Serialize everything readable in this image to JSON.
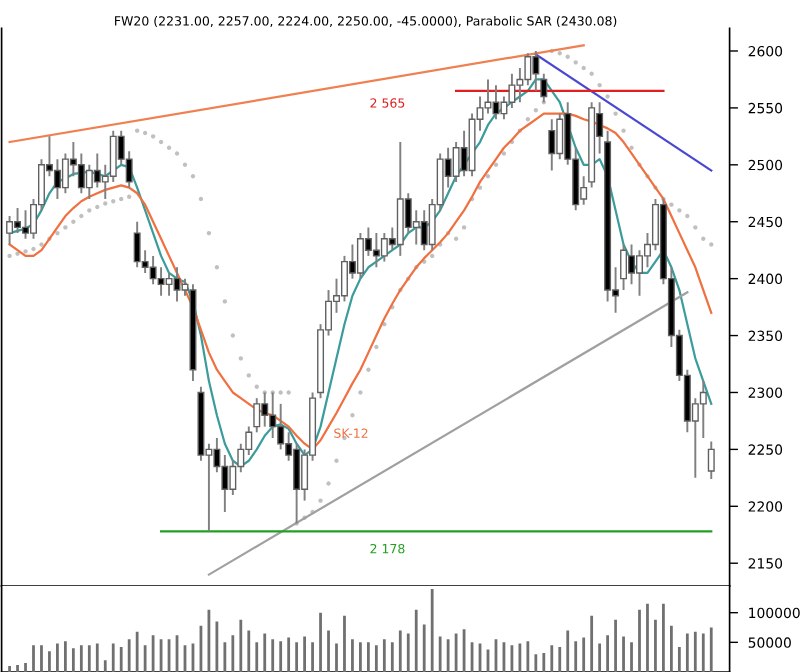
{
  "chart_data": [
    {
      "type": "candlestick",
      "title": "FW20 (2231.00, 2257.00, 2224.00, 2250.00, -45.0000), Parabolic SAR (2430.08)",
      "categories": [
        null,
        null,
        null,
        null,
        null,
        null,
        null,
        null,
        null,
        null,
        null,
        null,
        null,
        null,
        null,
        null,
        null,
        null,
        null,
        null,
        null,
        null,
        null,
        null,
        null,
        null,
        null,
        null,
        null,
        null,
        null,
        null,
        null,
        null,
        null,
        null,
        null,
        null,
        null,
        null,
        null,
        null,
        null,
        null,
        null,
        null,
        null,
        null,
        null,
        null,
        null,
        null,
        null,
        null,
        null,
        null,
        null,
        null,
        null,
        null,
        null,
        null,
        null,
        null,
        null,
        null,
        null,
        null,
        null,
        null,
        null,
        null,
        null,
        null,
        null,
        null,
        null,
        null,
        null,
        null,
        null,
        null,
        null,
        null,
        null,
        null,
        null,
        null,
        null
      ],
      "ohlc": [
        [
          2440,
          2455,
          2430,
          2450
        ],
        [
          2450,
          2462,
          2440,
          2445
        ],
        [
          2445,
          2460,
          2435,
          2440
        ],
        [
          2440,
          2470,
          2435,
          2465
        ],
        [
          2465,
          2505,
          2460,
          2500
        ],
        [
          2500,
          2525,
          2490,
          2495
        ],
        [
          2495,
          2505,
          2470,
          2480
        ],
        [
          2480,
          2510,
          2475,
          2505
        ],
        [
          2505,
          2520,
          2490,
          2500
        ],
        [
          2500,
          2510,
          2475,
          2480
        ],
        [
          2480,
          2500,
          2470,
          2495
        ],
        [
          2495,
          2510,
          2480,
          2485
        ],
        [
          2485,
          2500,
          2470,
          2490
        ],
        [
          2490,
          2530,
          2485,
          2525
        ],
        [
          2525,
          2530,
          2500,
          2505
        ],
        [
          2505,
          2512,
          2480,
          2485
        ],
        [
          2440,
          2450,
          2410,
          2415
        ],
        [
          2415,
          2425,
          2405,
          2410
        ],
        [
          2410,
          2420,
          2395,
          2400
        ],
        [
          2400,
          2410,
          2385,
          2395
        ],
        [
          2395,
          2405,
          2385,
          2400
        ],
        [
          2400,
          2410,
          2380,
          2390
        ],
        [
          2390,
          2400,
          2385,
          2395
        ],
        [
          2390,
          2395,
          2310,
          2320
        ],
        [
          2300,
          2305,
          2240,
          2245
        ],
        [
          2245,
          2255,
          2178,
          2250
        ],
        [
          2250,
          2260,
          2230,
          2235
        ],
        [
          2235,
          2245,
          2195,
          2215
        ],
        [
          2215,
          2240,
          2210,
          2235
        ],
        [
          2235,
          2255,
          2230,
          2250
        ],
        [
          2250,
          2270,
          2245,
          2265
        ],
        [
          2270,
          2295,
          2265,
          2290
        ],
        [
          2290,
          2300,
          2270,
          2280
        ],
        [
          2280,
          2300,
          2260,
          2270
        ],
        [
          2270,
          2290,
          2250,
          2255
        ],
        [
          2255,
          2265,
          2240,
          2245
        ],
        [
          2250,
          2255,
          2185,
          2215
        ],
        [
          2215,
          2250,
          2205,
          2245
        ],
        [
          2245,
          2300,
          2240,
          2295
        ],
        [
          2300,
          2360,
          2295,
          2355
        ],
        [
          2355,
          2390,
          2350,
          2380
        ],
        [
          2380,
          2400,
          2370,
          2385
        ],
        [
          2385,
          2420,
          2380,
          2415
        ],
        [
          2415,
          2430,
          2400,
          2405
        ],
        [
          2405,
          2440,
          2400,
          2435
        ],
        [
          2435,
          2445,
          2420,
          2425
        ],
        [
          2425,
          2440,
          2410,
          2420
        ],
        [
          2420,
          2440,
          2415,
          2435
        ],
        [
          2435,
          2445,
          2425,
          2430
        ],
        [
          2430,
          2520,
          2420,
          2470
        ],
        [
          2470,
          2475,
          2440,
          2445
        ],
        [
          2445,
          2460,
          2430,
          2450
        ],
        [
          2450,
          2460,
          2425,
          2430
        ],
        [
          2430,
          2470,
          2425,
          2465
        ],
        [
          2465,
          2510,
          2460,
          2505
        ],
        [
          2505,
          2515,
          2480,
          2490
        ],
        [
          2490,
          2520,
          2485,
          2515
        ],
        [
          2515,
          2530,
          2490,
          2495
        ],
        [
          2495,
          2545,
          2490,
          2540
        ],
        [
          2540,
          2560,
          2530,
          2550
        ],
        [
          2550,
          2575,
          2545,
          2555
        ],
        [
          2555,
          2570,
          2540,
          2545
        ],
        [
          2545,
          2560,
          2540,
          2555
        ],
        [
          2555,
          2580,
          2550,
          2570
        ],
        [
          2570,
          2585,
          2555,
          2575
        ],
        [
          2575,
          2598,
          2570,
          2595
        ],
        [
          2595,
          2600,
          2565,
          2580
        ],
        [
          2575,
          2580,
          2555,
          2560
        ],
        [
          2530,
          2540,
          2495,
          2510
        ],
        [
          2510,
          2545,
          2505,
          2540
        ],
        [
          2545,
          2555,
          2500,
          2505
        ],
        [
          2505,
          2515,
          2460,
          2465
        ],
        [
          2470,
          2490,
          2465,
          2480
        ],
        [
          2485,
          2555,
          2480,
          2550
        ],
        [
          2545,
          2555,
          2510,
          2525
        ],
        [
          2520,
          2530,
          2380,
          2390
        ],
        [
          2390,
          2410,
          2370,
          2385
        ],
        [
          2400,
          2430,
          2390,
          2425
        ],
        [
          2420,
          2430,
          2395,
          2405
        ],
        [
          2405,
          2425,
          2385,
          2420
        ],
        [
          2420,
          2440,
          2410,
          2430
        ],
        [
          2430,
          2470,
          2425,
          2465
        ],
        [
          2465,
          2470,
          2395,
          2400
        ],
        [
          2400,
          2410,
          2340,
          2350
        ],
        [
          2350,
          2355,
          2310,
          2315
        ],
        [
          2315,
          2320,
          2265,
          2275
        ],
        [
          2275,
          2295,
          2225,
          2290
        ],
        [
          2290,
          2310,
          2260,
          2300
        ],
        [
          2231,
          2257,
          2224,
          2250
        ]
      ],
      "series": [
        {
          "type": "line",
          "color": "#3c9c9c",
          "values": [
            2440,
            2442,
            2444,
            2448,
            2460,
            2475,
            2485,
            2488,
            2492,
            2493,
            2494,
            2492,
            2490,
            2495,
            2500,
            2498,
            2480,
            2460,
            2440,
            2420,
            2405,
            2400,
            2397,
            2380,
            2350,
            2310,
            2280,
            2255,
            2240,
            2235,
            2240,
            2250,
            2262,
            2270,
            2272,
            2268,
            2255,
            2245,
            2250,
            2270,
            2300,
            2330,
            2360,
            2385,
            2400,
            2410,
            2415,
            2420,
            2425,
            2430,
            2440,
            2445,
            2445,
            2450,
            2460,
            2475,
            2490,
            2500,
            2510,
            2520,
            2535,
            2545,
            2550,
            2555,
            2560,
            2565,
            2575,
            2575,
            2565,
            2555,
            2535,
            2515,
            2500,
            2500,
            2505,
            2490,
            2460,
            2430,
            2415,
            2405,
            2405,
            2415,
            2425,
            2410,
            2390,
            2360,
            2330,
            2310,
            2290
          ]
        },
        {
          "type": "line",
          "color": "#f07040",
          "values": [
            2430,
            2425,
            2420,
            2420,
            2425,
            2435,
            2445,
            2455,
            2462,
            2468,
            2472,
            2475,
            2478,
            2480,
            2482,
            2480,
            2475,
            2465,
            2450,
            2435,
            2420,
            2405,
            2390,
            2375,
            2355,
            2335,
            2320,
            2310,
            2300,
            2295,
            2290,
            2285,
            2282,
            2280,
            2275,
            2270,
            2262,
            2255,
            2250,
            2258,
            2270,
            2282,
            2295,
            2308,
            2320,
            2335,
            2350,
            2365,
            2378,
            2390,
            2400,
            2410,
            2418,
            2425,
            2432,
            2440,
            2450,
            2460,
            2472,
            2485,
            2495,
            2505,
            2515,
            2522,
            2530,
            2535,
            2540,
            2545,
            2545,
            2545,
            2545,
            2543,
            2540,
            2538,
            2535,
            2532,
            2528,
            2520,
            2510,
            2500,
            2490,
            2480,
            2470,
            2455,
            2440,
            2425,
            2410,
            2390,
            2370
          ]
        },
        {
          "type": "scatter",
          "color": "#c0c0c0",
          "values": [
            2420,
            2422,
            2424,
            2426,
            2430,
            2435,
            2440,
            2445,
            2450,
            2455,
            2460,
            2463,
            2466,
            2468,
            2470,
            2472,
            2530,
            2528,
            2525,
            2520,
            2515,
            2510,
            2500,
            2490,
            2470,
            2440,
            2410,
            2380,
            2350,
            2330,
            2315,
            2305,
            2300,
            2300,
            2300,
            2300,
            2185,
            2190,
            2195,
            2205,
            2220,
            2240,
            2260,
            2280,
            2300,
            2320,
            2340,
            2360,
            2375,
            2390,
            2400,
            2410,
            2415,
            2420,
            2430,
            2440,
            2435,
            2445,
            2470,
            2480,
            2490,
            2500,
            2510,
            2520,
            2530,
            2540,
            2548,
            2555,
            2600,
            2598,
            2595,
            2590,
            2585,
            2580,
            2570,
            2560,
            2545,
            2530,
            2515,
            2500,
            2490,
            2480,
            2470,
            2465,
            2460,
            2455,
            2445,
            2435,
            2430
          ]
        },
        {
          "type": "line",
          "color": "#f08050",
          "values": [
            2520,
            null,
            null,
            null,
            null,
            null,
            null,
            null,
            null,
            null,
            null,
            null,
            null,
            null,
            null,
            null,
            null,
            null,
            null,
            null,
            null,
            null,
            null,
            null,
            null,
            null,
            null,
            null,
            null,
            null,
            null,
            null,
            null,
            null,
            null,
            null,
            null,
            null,
            null,
            null,
            null,
            null,
            null,
            null,
            null,
            null,
            null,
            null,
            null,
            null,
            null,
            null,
            null,
            null,
            null,
            null,
            null,
            null,
            null,
            null,
            null,
            null,
            null,
            null,
            null,
            null,
            null,
            null,
            null,
            null,
            null,
            null,
            2605,
            null,
            null,
            null,
            null,
            null,
            null,
            null,
            null,
            null,
            null,
            null,
            null,
            null,
            null,
            null,
            null
          ]
        },
        {
          "type": "line",
          "color": "#4848d0",
          "values": [
            null,
            null,
            null,
            null,
            null,
            null,
            null,
            null,
            null,
            null,
            null,
            null,
            null,
            null,
            null,
            null,
            null,
            null,
            null,
            null,
            null,
            null,
            null,
            null,
            null,
            null,
            null,
            null,
            null,
            null,
            null,
            null,
            null,
            null,
            null,
            null,
            null,
            null,
            null,
            null,
            null,
            null,
            null,
            null,
            null,
            null,
            null,
            null,
            null,
            null,
            null,
            null,
            null,
            null,
            null,
            null,
            null,
            null,
            null,
            null,
            null,
            null,
            null,
            null,
            null,
            null,
            2597,
            null,
            null,
            null,
            null,
            null,
            null,
            null,
            null,
            null,
            null,
            null,
            null,
            null,
            null,
            null,
            null,
            null,
            null,
            null,
            null,
            null,
            2495
          ]
        },
        {
          "type": "line",
          "color": "#a0a0a0",
          "values": [
            null,
            null,
            null,
            null,
            null,
            null,
            null,
            null,
            null,
            null,
            null,
            null,
            null,
            null,
            null,
            null,
            null,
            null,
            null,
            null,
            null,
            null,
            null,
            null,
            null,
            2140,
            null,
            null,
            null,
            null,
            null,
            null,
            null,
            null,
            null,
            null,
            null,
            null,
            null,
            null,
            null,
            null,
            null,
            null,
            null,
            null,
            null,
            null,
            null,
            null,
            null,
            null,
            null,
            null,
            null,
            null,
            null,
            null,
            null,
            null,
            null,
            null,
            null,
            null,
            null,
            null,
            null,
            null,
            null,
            null,
            null,
            null,
            null,
            null,
            null,
            null,
            null,
            null,
            null,
            null,
            null,
            null,
            null,
            null,
            null,
            2388,
            null,
            null,
            null
          ]
        },
        {
          "type": "line",
          "color": "#e02020",
          "values": [
            null,
            null,
            null,
            null,
            null,
            null,
            null,
            null,
            null,
            null,
            null,
            null,
            null,
            null,
            null,
            null,
            null,
            null,
            null,
            null,
            null,
            null,
            null,
            null,
            null,
            null,
            null,
            null,
            null,
            null,
            null,
            null,
            null,
            null,
            null,
            null,
            null,
            null,
            null,
            null,
            null,
            null,
            null,
            null,
            null,
            null,
            null,
            null,
            null,
            null,
            null,
            null,
            null,
            null,
            null,
            null,
            2565,
            null,
            null,
            null,
            null,
            null,
            null,
            null,
            null,
            null,
            null,
            null,
            null,
            null,
            null,
            null,
            null,
            null,
            null,
            null,
            null,
            null,
            null,
            null,
            null,
            null,
            2565,
            null,
            null,
            null,
            null,
            null,
            null
          ]
        },
        {
          "type": "line",
          "color": "#20a020",
          "values": [
            null,
            null,
            null,
            null,
            null,
            null,
            null,
            null,
            null,
            null,
            null,
            null,
            null,
            null,
            null,
            null,
            null,
            null,
            null,
            2178,
            null,
            null,
            null,
            null,
            null,
            null,
            null,
            null,
            null,
            null,
            null,
            null,
            null,
            null,
            null,
            null,
            null,
            null,
            null,
            null,
            null,
            null,
            null,
            null,
            null,
            null,
            null,
            null,
            null,
            null,
            null,
            null,
            null,
            null,
            null,
            null,
            null,
            null,
            null,
            null,
            null,
            null,
            null,
            null,
            null,
            null,
            null,
            null,
            null,
            null,
            null,
            null,
            null,
            null,
            null,
            null,
            null,
            null,
            null,
            null,
            null,
            null,
            null,
            null,
            null,
            null,
            null,
            null,
            2178
          ]
        }
      ],
      "annotations": [
        "2 565",
        "2 178",
        "SK-12"
      ],
      "ylim": [
        2130,
        2620
      ],
      "yticks": [
        2150,
        2200,
        2250,
        2300,
        2350,
        2400,
        2450,
        2500,
        2550,
        2600
      ],
      "tick_labels": "y",
      "grid": false,
      "legend": false
    },
    {
      "type": "bar",
      "categories": [
        null,
        null,
        null,
        null,
        null,
        null,
        null,
        null,
        null,
        null,
        null,
        null,
        null,
        null,
        null,
        null,
        null,
        null,
        null,
        null,
        null,
        null,
        null,
        null,
        null,
        null,
        null,
        null,
        null,
        null,
        null,
        null,
        null,
        null,
        null,
        null,
        null,
        null,
        null,
        null,
        null,
        null,
        null,
        null,
        null,
        null,
        null,
        null,
        null,
        null,
        null,
        null,
        null,
        null,
        null,
        null,
        null,
        null,
        null,
        null,
        null,
        null,
        null,
        null,
        null,
        null,
        null,
        null,
        null,
        null,
        null,
        null,
        null,
        null,
        null,
        null,
        null,
        null,
        null,
        null,
        null,
        null,
        null,
        null,
        null,
        null,
        null,
        null,
        null
      ],
      "color": "#707070",
      "values": [
        10000,
        12000,
        15000,
        45000,
        45000,
        35000,
        48000,
        52000,
        40000,
        45000,
        45000,
        48000,
        20000,
        48000,
        42000,
        55000,
        68000,
        45000,
        62000,
        55000,
        55000,
        62000,
        45000,
        48000,
        78000,
        105000,
        85000,
        50000,
        62000,
        88000,
        70000,
        50000,
        65000,
        55000,
        52000,
        58000,
        50000,
        60000,
        50000,
        100000,
        70000,
        48000,
        95000,
        55000,
        50000,
        50000,
        45000,
        55000,
        50000,
        70000,
        65000,
        105000,
        80000,
        140000,
        60000,
        55000,
        65000,
        72000,
        50000,
        48000,
        38000,
        55000,
        50000,
        45000,
        48000,
        52000,
        30000,
        32000,
        45000,
        42000,
        70000,
        52000,
        58000,
        95000,
        48000,
        62000,
        88000,
        60000,
        50000,
        105000,
        115000,
        88000,
        115000,
        78000,
        42000,
        65000,
        68000,
        65000,
        75000
      ],
      "ylim": [
        0,
        145000
      ],
      "yticks": [
        50000,
        100000
      ],
      "tick_labels": "y",
      "grid": false,
      "legend": false
    }
  ]
}
